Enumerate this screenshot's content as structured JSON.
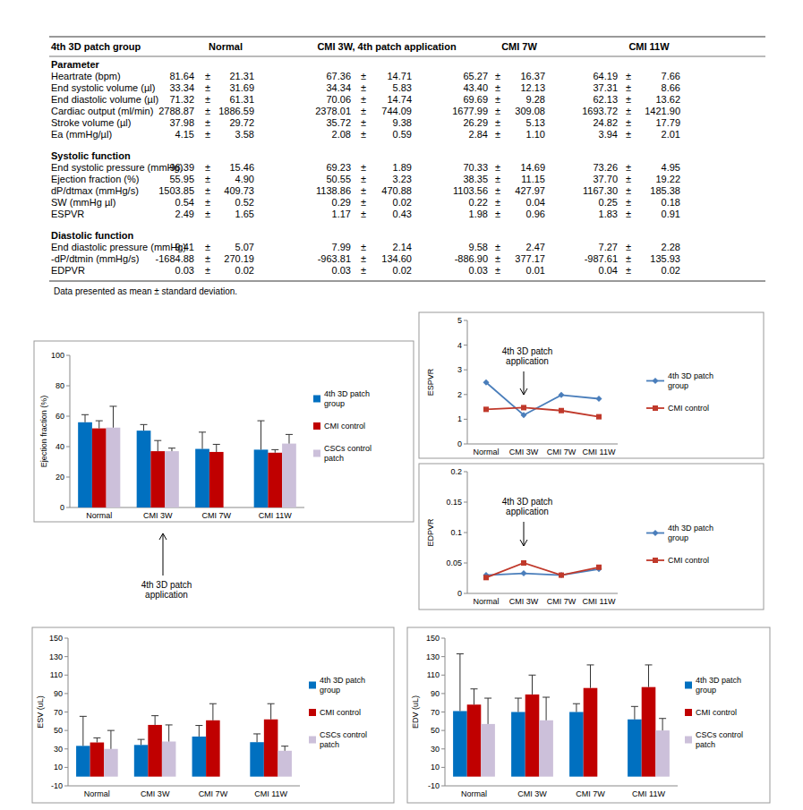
{
  "table": {
    "header": [
      "4th 3D patch group",
      "Normal",
      "CMI 3W, 4th patch application",
      "CMI 7W",
      "CMI 11W"
    ],
    "pm": "±",
    "sections": [
      {
        "title": "Parameter",
        "rows": [
          {
            "label": "Heartrate (bpm)",
            "cells": [
              [
                "81.64",
                "21.31"
              ],
              [
                "67.36",
                "14.71"
              ],
              [
                "65.27",
                "16.37"
              ],
              [
                "64.19",
                "7.66"
              ]
            ]
          },
          {
            "label": "End systolic volume (µl)",
            "cells": [
              [
                "33.34",
                "31.69"
              ],
              [
                "34.34",
                "5.83"
              ],
              [
                "43.40",
                "12.13"
              ],
              [
                "37.31",
                "8.66"
              ]
            ]
          },
          {
            "label": "End diastolic volume (µl)",
            "cells": [
              [
                "71.32",
                "61.31"
              ],
              [
                "70.06",
                "14.74"
              ],
              [
                "69.69",
                "9.28"
              ],
              [
                "62.13",
                "13.62"
              ]
            ]
          },
          {
            "label": "Cardiac output (ml/min)",
            "cells": [
              [
                "2788.87",
                "1886.59"
              ],
              [
                "2378.01",
                "744.09"
              ],
              [
                "1677.99",
                "309.08"
              ],
              [
                "1693.72",
                "1421.90"
              ]
            ]
          },
          {
            "label": "Stroke volume (µl)",
            "cells": [
              [
                "37.98",
                "29.72"
              ],
              [
                "35.72",
                "9.38"
              ],
              [
                "26.29",
                "5.13"
              ],
              [
                "24.82",
                "17.79"
              ]
            ]
          },
          {
            "label": "Ea (mmHg/µl)",
            "cells": [
              [
                "4.15",
                "3.58"
              ],
              [
                "2.08",
                "0.59"
              ],
              [
                "2.84",
                "1.10"
              ],
              [
                "3.94",
                "2.01"
              ]
            ]
          }
        ]
      },
      {
        "title": "Systolic function",
        "rows": [
          {
            "label": "End systolic pressure (mmHg)",
            "cells": [
              [
                "96.39",
                "15.46"
              ],
              [
                "69.23",
                "1.89"
              ],
              [
                "70.33",
                "14.69"
              ],
              [
                "73.26",
                "4.95"
              ]
            ]
          },
          {
            "label": "Ejection fraction (%)",
            "cells": [
              [
                "55.95",
                "4.90"
              ],
              [
                "50.55",
                "3.23"
              ],
              [
                "38.35",
                "11.15"
              ],
              [
                "37.70",
                "19.22"
              ]
            ]
          },
          {
            "label": "dP/dtmax (mmHg/s)",
            "cells": [
              [
                "1503.85",
                "409.73"
              ],
              [
                "1138.86",
                "470.88"
              ],
              [
                "1103.56",
                "427.97"
              ],
              [
                "1167.30",
                "185.38"
              ]
            ]
          },
          {
            "label": "SW (mmHg µl)",
            "cells": [
              [
                "0.54",
                "0.52"
              ],
              [
                "0.29",
                "0.02"
              ],
              [
                "0.22",
                "0.04"
              ],
              [
                "0.25",
                "0.18"
              ]
            ]
          },
          {
            "label": "ESPVR",
            "cells": [
              [
                "2.49",
                "1.65"
              ],
              [
                "1.17",
                "0.43"
              ],
              [
                "1.98",
                "0.96"
              ],
              [
                "1.83",
                "0.91"
              ]
            ]
          }
        ]
      },
      {
        "title": "Diastolic function",
        "rows": [
          {
            "label": "End diastolic pressure (mmHg)",
            "cells": [
              [
                "9.41",
                "5.07"
              ],
              [
                "7.99",
                "2.14"
              ],
              [
                "9.58",
                "2.47"
              ],
              [
                "7.27",
                "2.28"
              ]
            ]
          },
          {
            "label": "-dP/dtmin (mmHg/s)",
            "cells": [
              [
                "-1684.88",
                "270.19"
              ],
              [
                "-963.81",
                "134.60"
              ],
              [
                "-886.90",
                "377.17"
              ],
              [
                "-987.61",
                "135.93"
              ]
            ]
          },
          {
            "label": "EDPVR",
            "cells": [
              [
                "0.03",
                "0.02"
              ],
              [
                "0.03",
                "0.02"
              ],
              [
                "0.03",
                "0.01"
              ],
              [
                "0.04",
                "0.02"
              ]
            ]
          }
        ]
      }
    ],
    "note": "Data presented as mean ± standard deviation."
  },
  "chart_data": [
    {
      "type": "bar",
      "y_label": "Ejection fraction (%)",
      "annotation": "4th 3D patch application",
      "categories": [
        "Normal",
        "CMI 3W",
        "CMI 7W",
        "CMI 11W"
      ],
      "series": [
        {
          "name": "4th 3D patch group",
          "color": "#0070c0",
          "values": [
            56,
            50.5,
            38.5,
            38
          ],
          "errors": [
            5,
            4,
            11,
            19
          ]
        },
        {
          "name": "CMI control",
          "color": "#c00000",
          "values": [
            52,
            37,
            36.5,
            36
          ],
          "errors": [
            5,
            7,
            5,
            2
          ]
        },
        {
          "name": "CSCs control patch",
          "color": "#ccc0da",
          "values": [
            52.5,
            37,
            null,
            42
          ],
          "errors": [
            14,
            2,
            null,
            6
          ]
        }
      ],
      "ylim": [
        0,
        100
      ],
      "yticks": [
        0,
        20,
        40,
        60,
        80,
        100
      ],
      "grid": false,
      "legend": "right"
    },
    {
      "type": "line",
      "y_label": "ESPVR",
      "annotation": "4th 3D patch application",
      "categories": [
        "Normal",
        "CMI 3W",
        "CMI 7W",
        "CMI 11W"
      ],
      "series": [
        {
          "name": "4th 3D patch group",
          "color": "#4a7ebb",
          "marker": "diamond",
          "line_style": "solid",
          "values": [
            2.49,
            1.17,
            1.98,
            1.83
          ]
        },
        {
          "name": "CMI control",
          "color": "#c0392b",
          "marker": "square",
          "line_style": "solid",
          "values": [
            1.4,
            1.47,
            1.35,
            1.1
          ]
        }
      ],
      "ylim": [
        0,
        5
      ],
      "yticks": [
        0,
        1,
        2,
        3,
        4,
        5
      ],
      "grid": false,
      "legend": "right"
    },
    {
      "type": "line",
      "y_label": "EDPVR",
      "annotation": "4th 3D patch application",
      "categories": [
        "Normal",
        "CMI 3W",
        "CMI 7W",
        "CMI 11W"
      ],
      "series": [
        {
          "name": "4th 3D patch group",
          "color": "#4a7ebb",
          "marker": "diamond",
          "line_style": "solid",
          "values": [
            0.03,
            0.033,
            0.03,
            0.04
          ]
        },
        {
          "name": "CMI control",
          "color": "#c0392b",
          "marker": "square",
          "line_style": "solid",
          "values": [
            0.026,
            0.05,
            0.03,
            0.043
          ]
        }
      ],
      "ylim": [
        0,
        0.2
      ],
      "yticks": [
        0,
        0.05,
        0.1,
        0.15,
        0.2
      ],
      "grid": false,
      "legend": "right"
    },
    {
      "type": "bar",
      "y_label": "ESV (uL)",
      "categories": [
        "Normal",
        "CMI 3W",
        "CMI 7W",
        "CMI 11W"
      ],
      "series": [
        {
          "name": "4th 3D patch group",
          "color": "#0070c0",
          "values": [
            33.3,
            34.3,
            43.4,
            37.3
          ],
          "errors": [
            32,
            6,
            12,
            9
          ]
        },
        {
          "name": "CMI control",
          "color": "#c00000",
          "values": [
            37,
            56,
            61,
            62
          ],
          "errors": [
            5,
            10,
            18,
            17
          ]
        },
        {
          "name": "CSCs control patch",
          "color": "#ccc0da",
          "values": [
            30,
            38,
            null,
            28
          ],
          "errors": [
            20,
            18,
            null,
            5
          ]
        }
      ],
      "ylim": [
        -10,
        150
      ],
      "yticks": [
        -10,
        10,
        30,
        50,
        70,
        90,
        110,
        130,
        150
      ],
      "grid": false,
      "legend": "right"
    },
    {
      "type": "bar",
      "y_label": "EDV (uL)",
      "categories": [
        "Normal",
        "CMI 3W",
        "CMI 7W",
        "CMI 11W"
      ],
      "series": [
        {
          "name": "4th 3D patch group",
          "color": "#0070c0",
          "values": [
            71,
            70,
            70,
            62
          ],
          "errors": [
            62,
            15,
            9,
            14
          ]
        },
        {
          "name": "CMI control",
          "color": "#c00000",
          "values": [
            78,
            89,
            96,
            97
          ],
          "errors": [
            17,
            21,
            25,
            24
          ]
        },
        {
          "name": "CSCs control patch",
          "color": "#ccc0da",
          "values": [
            57,
            61,
            null,
            50
          ],
          "errors": [
            28,
            25,
            null,
            13
          ]
        }
      ],
      "ylim": [
        -10,
        150
      ],
      "yticks": [
        -10,
        10,
        30,
        50,
        70,
        90,
        110,
        130,
        150
      ],
      "grid": false,
      "legend": "right"
    }
  ]
}
